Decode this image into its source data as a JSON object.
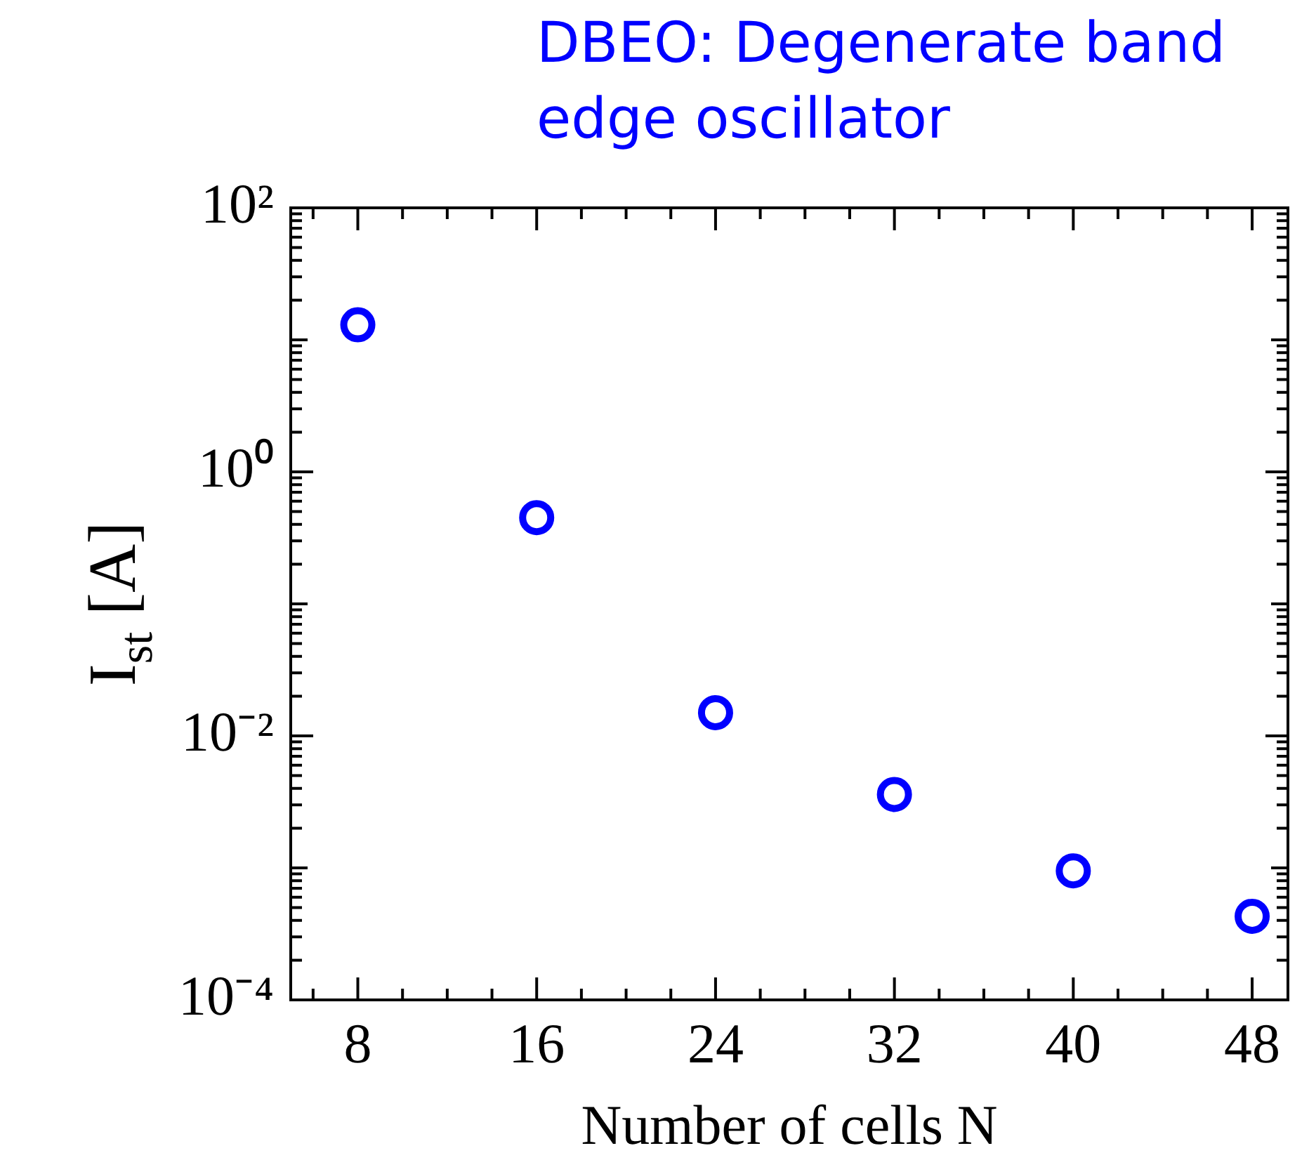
{
  "chart_data": {
    "type": "scatter",
    "title": "DBEO: Degenerate band edge oscillator",
    "xlabel": "Number of cells N",
    "ylabel": "I$_{st}$ [A]",
    "x": [
      8,
      16,
      24,
      32,
      40,
      48
    ],
    "series": [
      {
        "color": "#0000ff",
        "values": [
          13,
          0.45,
          0.015,
          0.0036,
          0.00095,
          0.00043
        ]
      }
    ],
    "xlim": [
      5,
      49.6
    ],
    "xticks": [
      8,
      16,
      24,
      32,
      40,
      48
    ],
    "ylim": [
      0.0001,
      100
    ],
    "yticks": [
      {
        "value": 100,
        "label": "10²"
      },
      {
        "value": 1,
        "label": "10⁰"
      },
      {
        "value": 0.01,
        "label": "10⁻²"
      },
      {
        "value": 0.0001,
        "label": "10⁻⁴"
      }
    ],
    "log": "y",
    "grid": false,
    "legend": false,
    "marker": "circle"
  }
}
